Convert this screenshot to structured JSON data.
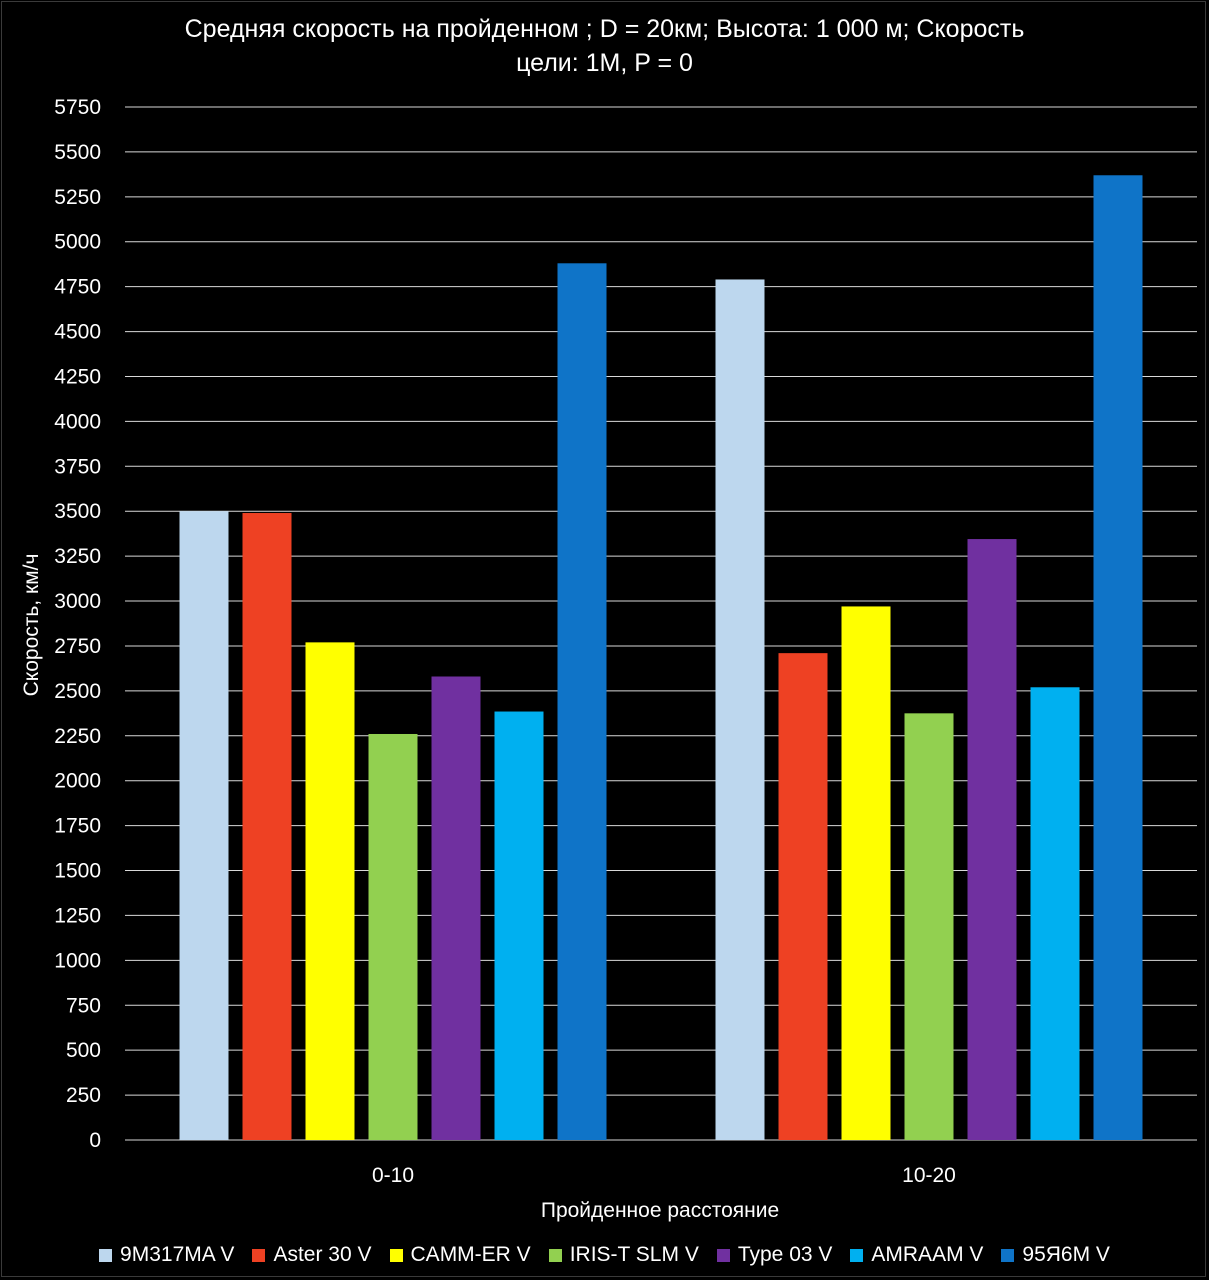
{
  "chart_data": {
    "type": "bar",
    "title_lines": [
      "Средняя скорость на пройденном ; D = 20км; Высота: 1 000 м; Скорость",
      "цели: 1M,  P = 0"
    ],
    "xlabel": "Пройденное расстояние",
    "ylabel": "Скорость, км/ч",
    "ylim": [
      0,
      5750
    ],
    "ytick_step": 250,
    "yticks": [
      "0",
      "250",
      "500",
      "750",
      "1000",
      "1250",
      "1500",
      "1750",
      "2000",
      "2250",
      "2500",
      "2750",
      "3000",
      "3250",
      "3500",
      "3750",
      "4000",
      "4250",
      "4500",
      "4750",
      "5000",
      "5250",
      "5500",
      "5750"
    ],
    "grid": true,
    "legend_position": "bottom",
    "categories": [
      "0-10",
      "10-20"
    ],
    "series": [
      {
        "name": "9M317MA V",
        "color": "#BDD7EE",
        "values": [
          3500,
          4790
        ]
      },
      {
        "name": "Aster 30 V",
        "color": "#EE4123",
        "values": [
          3490,
          2710
        ]
      },
      {
        "name": "CAMM-ER V",
        "color": "#FFFF00",
        "values": [
          2770,
          2970
        ]
      },
      {
        "name": "IRIS-T SLM V",
        "color": "#92D050",
        "values": [
          2260,
          2375
        ]
      },
      {
        "name": "Type 03 V",
        "color": "#7030A0",
        "values": [
          2580,
          3345
        ]
      },
      {
        "name": "AMRAAM V",
        "color": "#00B0F0",
        "values": [
          2385,
          2520
        ]
      },
      {
        "name": "95Я6M V",
        "color": "#0F74C8",
        "values": [
          4880,
          5370
        ]
      }
    ]
  }
}
